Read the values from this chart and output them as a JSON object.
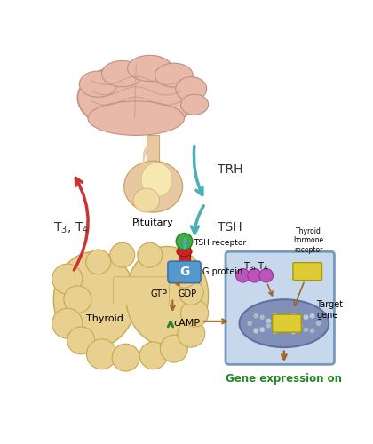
{
  "bg_color": "#ffffff",
  "brain_color": "#e8b8a8",
  "brain_outline": "#c09080",
  "pituitary_color": "#e8c8a0",
  "pituitary_inner": "#f5e8b0",
  "thyroid_color": "#e8d090",
  "thyroid_edge": "#c8a850",
  "cell_bg": "#c8d8ec",
  "cell_edge": "#7799bb",
  "nucleus_color": "#8090b8",
  "nucleus_edge": "#6070a0",
  "trh_label": "TRH",
  "tsh_label": "TSH",
  "tsh_receptor_label": "TSH receptor",
  "g_protein_label": "G protein",
  "gtp_label": "GTP",
  "gdp_label": "GDP",
  "camp_label": "cAMP",
  "t3t4_label_left": "T$_3$, T$_4$",
  "t3t4_label_cell": "T$_3$, T$_4$",
  "pituitary_label": "Pituitary",
  "thyroid_label": "Thyroid",
  "thyroid_hormone_receptor": "Thyroid\nhormone\nreceptor",
  "target_gene": "Target\ngene",
  "gene_expression": "Gene expression on",
  "arrow_teal": "#4ab0b8",
  "arrow_red": "#cc3333",
  "arrow_brown": "#a06828",
  "arrow_green": "#228822",
  "g_protein_color": "#5599cc",
  "receptor_stem_color": "#cc2222",
  "receptor_ball_color": "#44aa44",
  "hormone_ball_color": "#bb55bb",
  "yellow_box_color": "#ddcc33",
  "yellow_box_edge": "#aa9900",
  "font_size_label": 9,
  "font_size_small": 8,
  "font_size_tiny": 7
}
